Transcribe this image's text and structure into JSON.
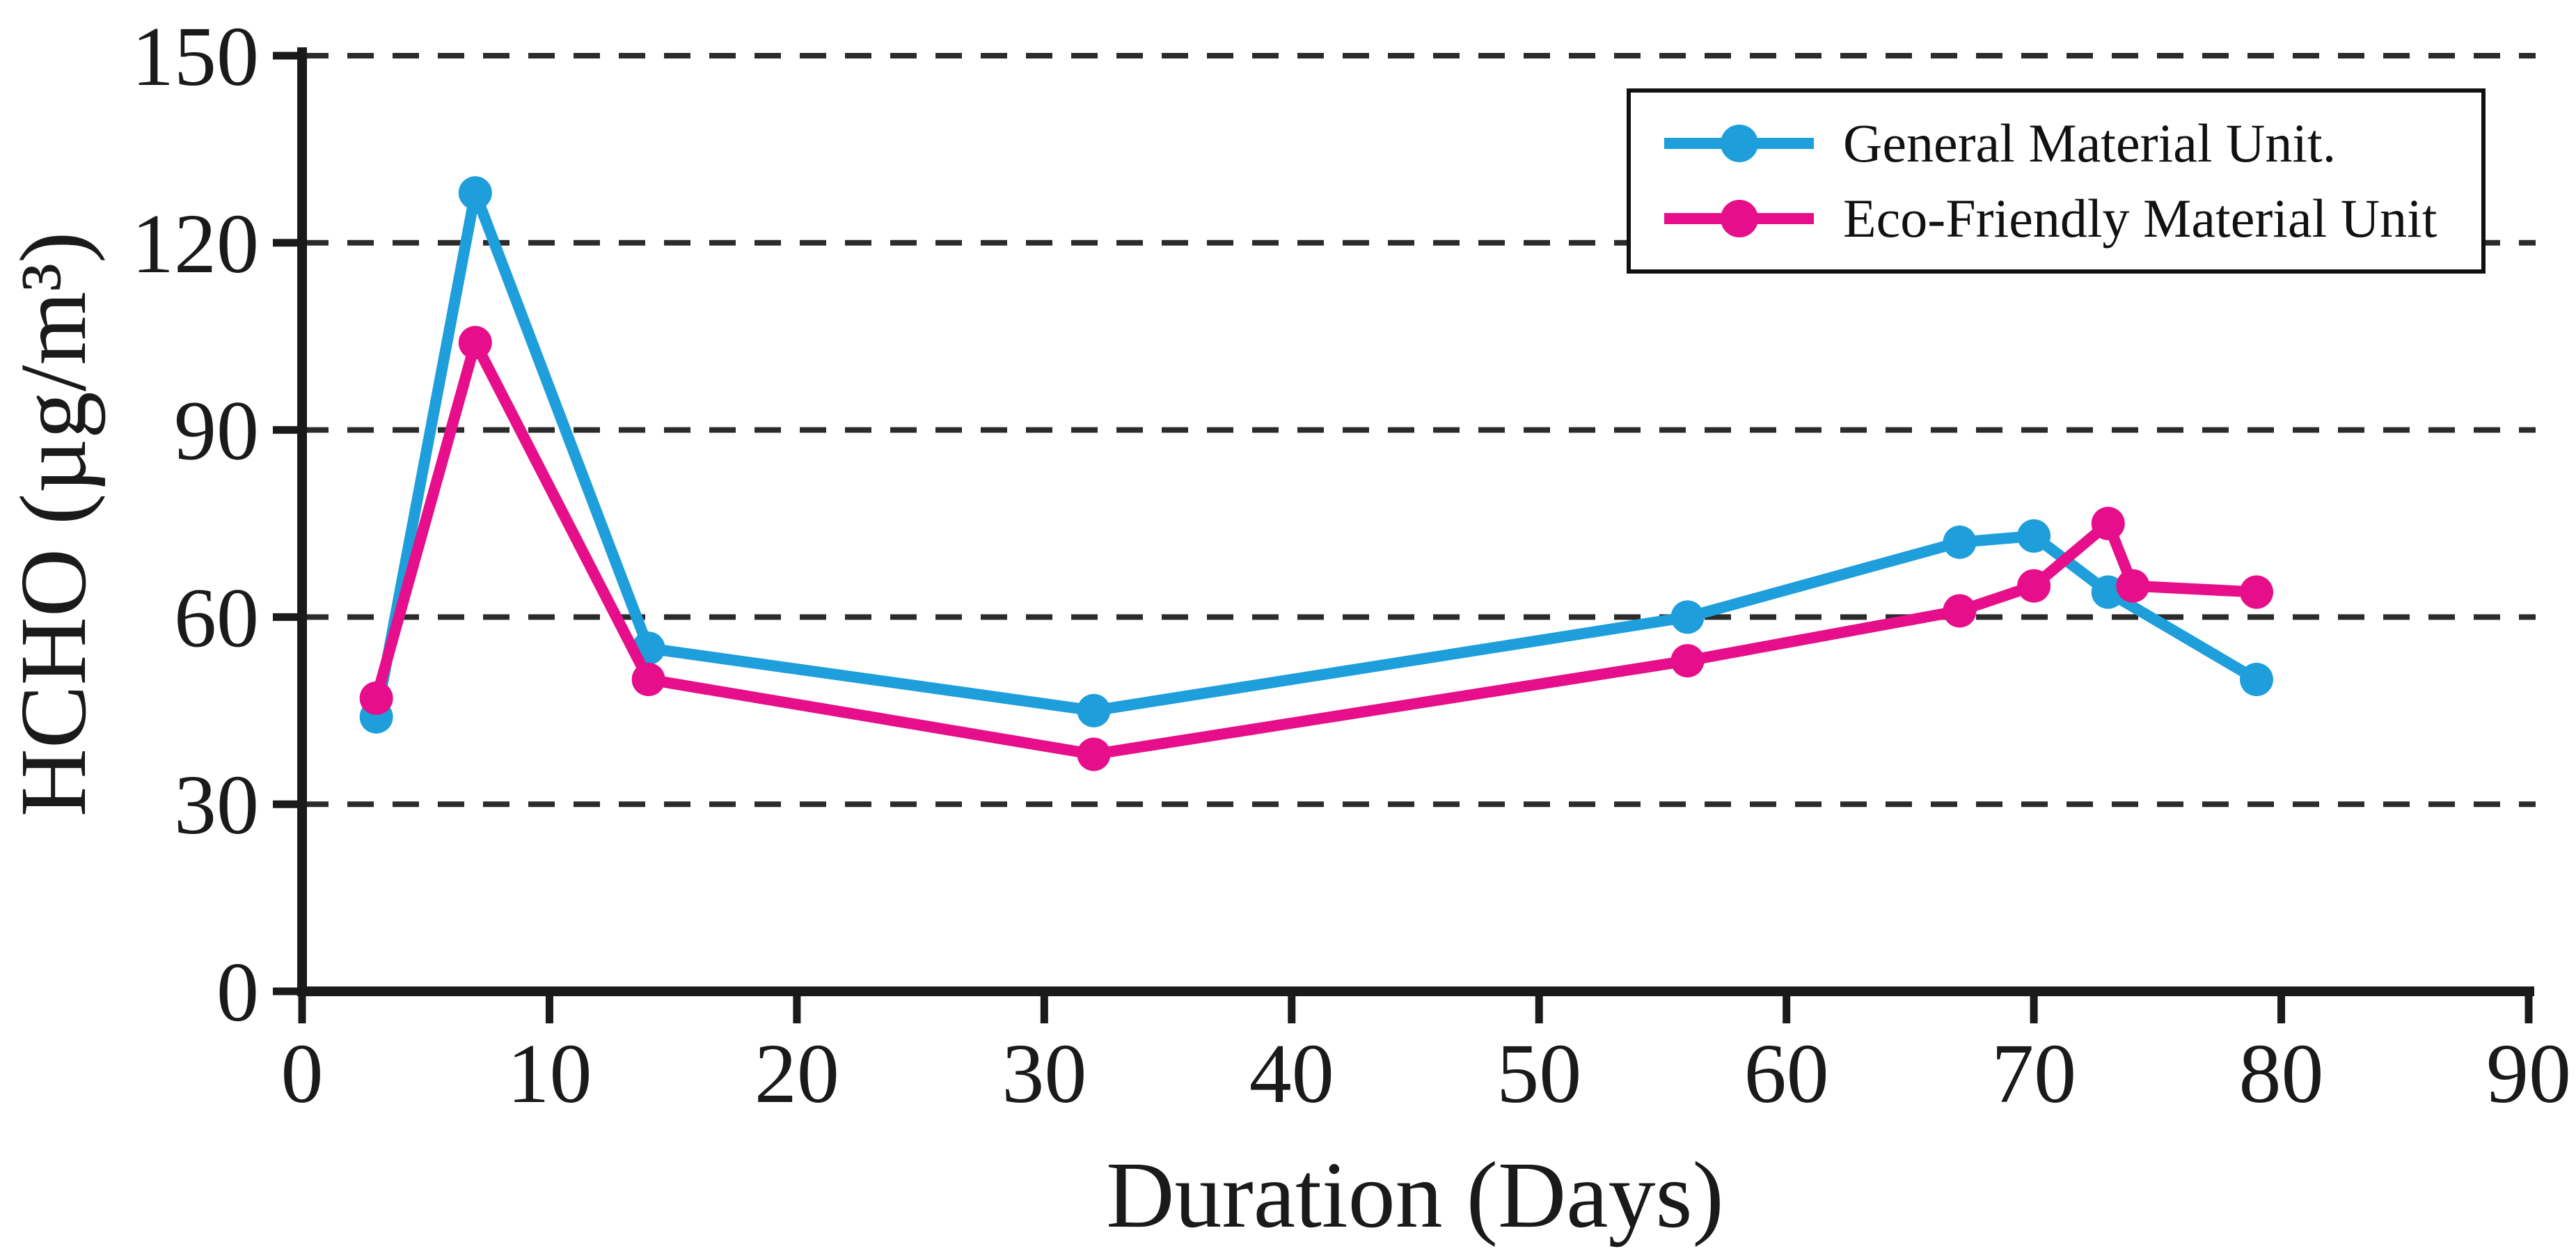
{
  "figure": {
    "x_axis_title": "Duration (Days)",
    "y_axis_title": "HCHO (µg/m³)"
  },
  "colors": {
    "axis": "#1a1a1a",
    "gridline": "#2b2b2b",
    "background": "#ffffff",
    "series_general": "#1E9FDB",
    "series_eco": "#E60E8A"
  },
  "chart_data": {
    "type": "line",
    "title": "",
    "xlabel": "Duration (Days)",
    "ylabel": "HCHO (µg/m³)",
    "xlim": [
      0,
      90
    ],
    "ylim": [
      0,
      150
    ],
    "x_ticks": [
      0,
      10,
      20,
      30,
      40,
      50,
      60,
      70,
      80,
      90
    ],
    "y_ticks": [
      0,
      30,
      60,
      90,
      120,
      150
    ],
    "grid": "dashed horizontal lines at y = 30, 60, 90, 120, 150",
    "y_gridlines": [
      30,
      60,
      90,
      120,
      150
    ],
    "legend_position": "top-right",
    "series": [
      {
        "name": "General Material Unit.",
        "color": "#1E9FDB",
        "marker": "circle",
        "points": [
          [
            3,
            44
          ],
          [
            7,
            128
          ],
          [
            14,
            55
          ],
          [
            32,
            45
          ],
          [
            56,
            60
          ],
          [
            67,
            72
          ],
          [
            70,
            73
          ],
          [
            73,
            64
          ],
          [
            79,
            50
          ]
        ]
      },
      {
        "name": "Eco-Friendly Material Unit",
        "color": "#E60E8A",
        "marker": "circle",
        "points": [
          [
            3,
            47
          ],
          [
            7,
            104
          ],
          [
            14,
            50
          ],
          [
            32,
            38
          ],
          [
            56,
            53
          ],
          [
            67,
            61
          ],
          [
            70,
            65
          ],
          [
            73,
            75
          ],
          [
            74,
            65
          ],
          [
            79,
            64
          ]
        ]
      }
    ]
  }
}
